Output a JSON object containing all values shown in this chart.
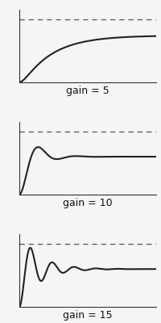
{
  "panels": [
    {
      "label": "gain = 5",
      "color": "#222222",
      "line_width": 1.5
    },
    {
      "label": "gain = 10",
      "color": "#222222",
      "line_width": 1.5
    },
    {
      "label": "gain = 15",
      "color": "#222222",
      "line_width": 1.5
    }
  ],
  "setpoint": 1.0,
  "dashed_color": "#555555",
  "background_color": "#f5f5f5",
  "label_fontsize": 9,
  "figsize": [
    2.0,
    4.0
  ],
  "dpi": 100
}
